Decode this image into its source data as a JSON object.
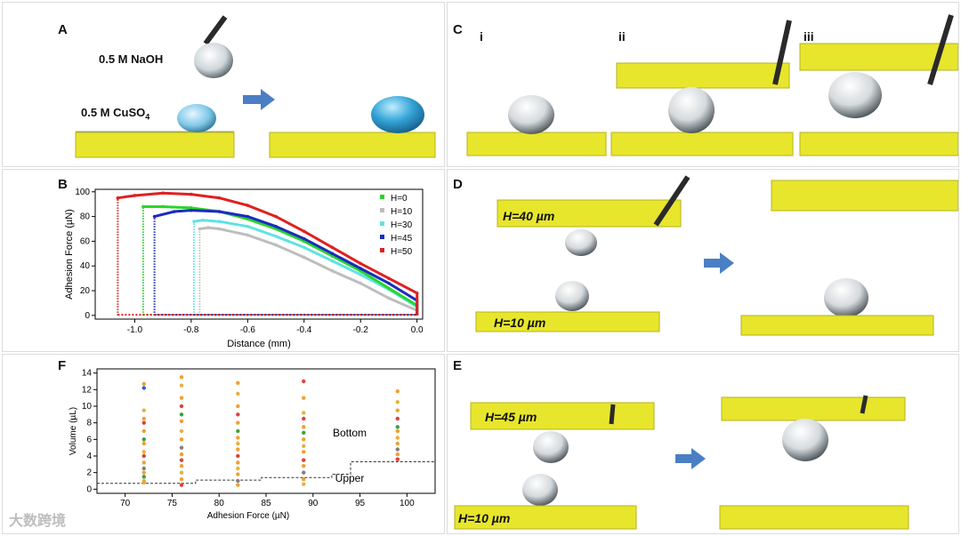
{
  "panels": {
    "A": {
      "label": "A",
      "drop_top_label": "0.5 M NaOH",
      "drop_bottom_label_main": "0.5 M CuSO",
      "drop_bottom_label_sub": "4"
    },
    "B": {
      "label": "B"
    },
    "C": {
      "label": "C",
      "sub_i": "i",
      "sub_ii": "ii",
      "sub_iii": "iii"
    },
    "D": {
      "label": "D",
      "h_top": "H=40 µm",
      "h_bottom": "H=10 µm"
    },
    "E": {
      "label": "E",
      "h_top": "H=45 µm",
      "h_bottom": "H=10 µm"
    },
    "F": {
      "label": "F",
      "region_bottom": "Bottom",
      "region_upper": "Upper"
    }
  },
  "colors": {
    "substrate": "#e7e62c",
    "arrow": "#4a7fc4",
    "droplet_blue": "#2f95c9"
  },
  "chart_data": [
    {
      "type": "line",
      "panel": "B",
      "xlabel": "Distance (mm)",
      "ylabel": "Adhesion Force (µN)",
      "xlim": [
        -1.14,
        0.02
      ],
      "ylim": [
        -3,
        102
      ],
      "x_ticks": [
        -1.0,
        -0.8,
        -0.6,
        -0.4,
        -0.2,
        0.0
      ],
      "x_tick_labels": [
        "-1.0",
        "-0.8",
        "-0.6",
        "-0.4",
        "-0.2",
        "0.0"
      ],
      "y_ticks": [
        0,
        20,
        40,
        60,
        80,
        100
      ],
      "y_tick_labels": [
        "0",
        "20",
        "40",
        "60",
        "80",
        "100"
      ],
      "legend_position": "top-right",
      "series": [
        {
          "name": "H=0",
          "color": "#2ad52a",
          "jump_x": -0.97,
          "x": [
            -0.97,
            -0.9,
            -0.8,
            -0.7,
            -0.6,
            -0.5,
            -0.4,
            -0.3,
            -0.2,
            -0.1,
            0.0
          ],
          "y": [
            88,
            88,
            87,
            84,
            78,
            70,
            60,
            48,
            36,
            22,
            8
          ]
        },
        {
          "name": "H=10",
          "color": "#bdbdbd",
          "jump_x": -0.77,
          "x": [
            -0.77,
            -0.74,
            -0.7,
            -0.6,
            -0.5,
            -0.4,
            -0.3,
            -0.2,
            -0.1,
            0.0
          ],
          "y": [
            70,
            71,
            70,
            65,
            57,
            47,
            36,
            26,
            14,
            4
          ]
        },
        {
          "name": "H=30",
          "color": "#5fe3e3",
          "jump_x": -0.79,
          "x": [
            -0.79,
            -0.76,
            -0.7,
            -0.6,
            -0.5,
            -0.4,
            -0.3,
            -0.2,
            -0.1,
            0.0
          ],
          "y": [
            76,
            77,
            76,
            72,
            64,
            55,
            44,
            33,
            21,
            7
          ]
        },
        {
          "name": "H=45",
          "color": "#1a2cc0",
          "jump_x": -0.93,
          "x": [
            -0.93,
            -0.86,
            -0.8,
            -0.7,
            -0.6,
            -0.5,
            -0.4,
            -0.3,
            -0.2,
            -0.1,
            0.0
          ],
          "y": [
            80,
            84,
            85,
            84,
            80,
            72,
            62,
            50,
            38,
            26,
            12
          ]
        },
        {
          "name": "H=50",
          "color": "#e02020",
          "jump_x": -1.06,
          "x": [
            -1.06,
            -1.0,
            -0.9,
            -0.8,
            -0.7,
            -0.6,
            -0.5,
            -0.4,
            -0.3,
            -0.2,
            -0.1,
            0.0
          ],
          "y": [
            95,
            97,
            99,
            98,
            95,
            89,
            80,
            68,
            55,
            42,
            30,
            18
          ]
        }
      ]
    },
    {
      "type": "scatter",
      "panel": "F",
      "xlabel": "Adhesion Force (µN)",
      "ylabel": "Volume (µL)",
      "xlim": [
        67,
        103
      ],
      "ylim": [
        -0.5,
        14.5
      ],
      "x_ticks": [
        70,
        75,
        80,
        85,
        90,
        95,
        100
      ],
      "x_tick_labels": [
        "70",
        "75",
        "80",
        "85",
        "90",
        "95",
        "100"
      ],
      "y_ticks": [
        0,
        2,
        4,
        6,
        8,
        10,
        12,
        14
      ],
      "y_tick_labels": [
        "0",
        "2",
        "4",
        "6",
        "8",
        "10",
        "12",
        "14"
      ],
      "columns_x": [
        72,
        76,
        82,
        89,
        99
      ],
      "points": [
        {
          "x": 72,
          "y": 12.7,
          "color": "#f0a030"
        },
        {
          "x": 72,
          "y": 12.2,
          "color": "#3060d0"
        },
        {
          "x": 72,
          "y": 9.5,
          "color": "#e8b040"
        },
        {
          "x": 72,
          "y": 8.5,
          "color": "#f0a030"
        },
        {
          "x": 72,
          "y": 8.0,
          "color": "#e04040"
        },
        {
          "x": 72,
          "y": 7.0,
          "color": "#f0a030"
        },
        {
          "x": 72,
          "y": 6.0,
          "color": "#40a040"
        },
        {
          "x": 72,
          "y": 5.5,
          "color": "#f0a030"
        },
        {
          "x": 72,
          "y": 4.5,
          "color": "#e8b040"
        },
        {
          "x": 72,
          "y": 4.0,
          "color": "#e04040"
        },
        {
          "x": 72,
          "y": 3.2,
          "color": "#f0a030"
        },
        {
          "x": 72,
          "y": 2.5,
          "color": "#808080"
        },
        {
          "x": 72,
          "y": 2.0,
          "color": "#f0a030"
        },
        {
          "x": 72,
          "y": 1.5,
          "color": "#40a040"
        },
        {
          "x": 72,
          "y": 1.0,
          "color": "#e8b040"
        },
        {
          "x": 72,
          "y": 0.8,
          "color": "#f0a030"
        },
        {
          "x": 76,
          "y": 13.5,
          "color": "#f0a030"
        },
        {
          "x": 76,
          "y": 12.5,
          "color": "#e8b040"
        },
        {
          "x": 76,
          "y": 11.0,
          "color": "#f0a030"
        },
        {
          "x": 76,
          "y": 10.0,
          "color": "#e04040"
        },
        {
          "x": 76,
          "y": 9.0,
          "color": "#40a040"
        },
        {
          "x": 76,
          "y": 8.2,
          "color": "#f0a030"
        },
        {
          "x": 76,
          "y": 7.0,
          "color": "#e8b040"
        },
        {
          "x": 76,
          "y": 6.0,
          "color": "#f0a030"
        },
        {
          "x": 76,
          "y": 5.0,
          "color": "#808080"
        },
        {
          "x": 76,
          "y": 4.2,
          "color": "#f0a030"
        },
        {
          "x": 76,
          "y": 3.5,
          "color": "#e04040"
        },
        {
          "x": 76,
          "y": 2.8,
          "color": "#f0a030"
        },
        {
          "x": 76,
          "y": 2.0,
          "color": "#e8b040"
        },
        {
          "x": 76,
          "y": 1.2,
          "color": "#f0a030"
        },
        {
          "x": 76,
          "y": 0.5,
          "color": "#e04040"
        },
        {
          "x": 82,
          "y": 12.8,
          "color": "#f0a030"
        },
        {
          "x": 82,
          "y": 11.5,
          "color": "#e8b040"
        },
        {
          "x": 82,
          "y": 10.0,
          "color": "#f0a030"
        },
        {
          "x": 82,
          "y": 9.0,
          "color": "#e04040"
        },
        {
          "x": 82,
          "y": 8.0,
          "color": "#f0a030"
        },
        {
          "x": 82,
          "y": 7.0,
          "color": "#40a040"
        },
        {
          "x": 82,
          "y": 6.2,
          "color": "#f0a030"
        },
        {
          "x": 82,
          "y": 5.5,
          "color": "#e8b040"
        },
        {
          "x": 82,
          "y": 4.8,
          "color": "#f0a030"
        },
        {
          "x": 82,
          "y": 4.0,
          "color": "#e04040"
        },
        {
          "x": 82,
          "y": 3.2,
          "color": "#f0a030"
        },
        {
          "x": 82,
          "y": 2.5,
          "color": "#e8b040"
        },
        {
          "x": 82,
          "y": 1.8,
          "color": "#f0a030"
        },
        {
          "x": 82,
          "y": 1.0,
          "color": "#808080"
        },
        {
          "x": 82,
          "y": 0.5,
          "color": "#f0a030"
        },
        {
          "x": 89,
          "y": 13.0,
          "color": "#e04040"
        },
        {
          "x": 89,
          "y": 11.0,
          "color": "#f0a030"
        },
        {
          "x": 89,
          "y": 9.2,
          "color": "#e8b040"
        },
        {
          "x": 89,
          "y": 8.5,
          "color": "#e04040"
        },
        {
          "x": 89,
          "y": 7.5,
          "color": "#f0a030"
        },
        {
          "x": 89,
          "y": 6.8,
          "color": "#40a040"
        },
        {
          "x": 89,
          "y": 6.0,
          "color": "#f0a030"
        },
        {
          "x": 89,
          "y": 5.2,
          "color": "#e8b040"
        },
        {
          "x": 89,
          "y": 4.5,
          "color": "#f0a030"
        },
        {
          "x": 89,
          "y": 3.5,
          "color": "#e04040"
        },
        {
          "x": 89,
          "y": 2.8,
          "color": "#f0a030"
        },
        {
          "x": 89,
          "y": 2.0,
          "color": "#808080"
        },
        {
          "x": 89,
          "y": 1.2,
          "color": "#f0a030"
        },
        {
          "x": 89,
          "y": 0.6,
          "color": "#e8b040"
        },
        {
          "x": 99,
          "y": 11.8,
          "color": "#f0a030"
        },
        {
          "x": 99,
          "y": 10.5,
          "color": "#e8b040"
        },
        {
          "x": 99,
          "y": 9.5,
          "color": "#f0a030"
        },
        {
          "x": 99,
          "y": 8.5,
          "color": "#e04040"
        },
        {
          "x": 99,
          "y": 7.5,
          "color": "#40a040"
        },
        {
          "x": 99,
          "y": 7.0,
          "color": "#f0a030"
        },
        {
          "x": 99,
          "y": 6.2,
          "color": "#e8b040"
        },
        {
          "x": 99,
          "y": 5.5,
          "color": "#f0a030"
        },
        {
          "x": 99,
          "y": 4.8,
          "color": "#808080"
        },
        {
          "x": 99,
          "y": 4.2,
          "color": "#f0a030"
        },
        {
          "x": 99,
          "y": 3.6,
          "color": "#e04040"
        }
      ],
      "threshold_steps": {
        "x": [
          67,
          77.5,
          84.5,
          92,
          94,
          103
        ],
        "y": [
          0.7,
          1.1,
          1.4,
          1.8,
          3.3,
          3.3
        ]
      }
    }
  ],
  "watermark": "大数跨境"
}
